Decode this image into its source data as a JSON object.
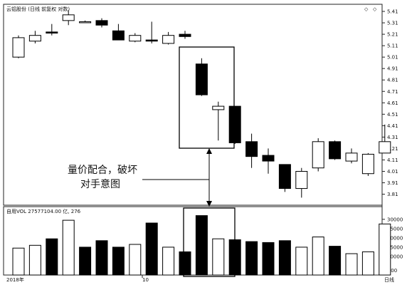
{
  "header": {
    "title": "云铝股份 (日线 前复权 对数)",
    "diamond_left": "◇",
    "diamond_right": "◇"
  },
  "volume_header": {
    "label": "自用VOL  27577104.00 亿, 276"
  },
  "annotation": {
    "line1": "量价配合，破坏",
    "line2": "对手意图"
  },
  "bottom": {
    "year_label": "2018年",
    "month_label": "10",
    "right_label": "日线",
    "unit_label": "X100"
  },
  "chart_data": [
    {
      "type": "candlestick",
      "title": "云铝股份 (日线 前复权 对数)",
      "ylim": [
        3.72,
        5.46
      ],
      "yticks": [
        5.41,
        5.31,
        5.21,
        5.11,
        5.01,
        4.91,
        4.81,
        4.71,
        4.61,
        4.51,
        4.41,
        4.31,
        4.21,
        4.11,
        4.01,
        3.91,
        3.81
      ],
      "candles": [
        {
          "open": 5.01,
          "high": 5.2,
          "low": 5.0,
          "close": 5.18
        },
        {
          "open": 5.15,
          "high": 5.24,
          "low": 5.13,
          "close": 5.2
        },
        {
          "open": 5.23,
          "high": 5.3,
          "low": 5.2,
          "close": 5.22
        },
        {
          "open": 5.33,
          "high": 5.42,
          "low": 5.29,
          "close": 5.38
        },
        {
          "open": 5.32,
          "high": 5.33,
          "low": 5.31,
          "close": 5.32
        },
        {
          "open": 5.33,
          "high": 5.35,
          "low": 5.27,
          "close": 5.29
        },
        {
          "open": 5.24,
          "high": 5.3,
          "low": 5.17,
          "close": 5.16
        },
        {
          "open": 5.15,
          "high": 5.22,
          "low": 5.14,
          "close": 5.2
        },
        {
          "open": 5.16,
          "high": 5.32,
          "low": 5.13,
          "close": 5.15
        },
        {
          "open": 5.13,
          "high": 5.23,
          "low": 5.12,
          "close": 5.2
        },
        {
          "open": 5.21,
          "high": 5.24,
          "low": 5.17,
          "close": 5.19
        },
        {
          "open": 4.95,
          "high": 5.0,
          "low": 4.67,
          "close": 4.68
        },
        {
          "open": 4.55,
          "high": 4.62,
          "low": 4.28,
          "close": 4.58
        },
        {
          "open": 4.58,
          "high": 4.58,
          "low": 4.25,
          "close": 4.26
        },
        {
          "open": 4.27,
          "high": 4.34,
          "low": 4.04,
          "close": 4.14
        },
        {
          "open": 4.15,
          "high": 4.21,
          "low": 3.99,
          "close": 4.1
        },
        {
          "open": 4.07,
          "high": 4.07,
          "low": 3.83,
          "close": 3.86
        },
        {
          "open": 3.86,
          "high": 4.04,
          "low": 3.78,
          "close": 4.01
        },
        {
          "open": 4.04,
          "high": 4.3,
          "low": 4.01,
          "close": 4.27
        },
        {
          "open": 4.27,
          "high": 4.28,
          "low": 4.11,
          "close": 4.12
        },
        {
          "open": 4.1,
          "high": 4.21,
          "low": 4.08,
          "close": 4.17
        },
        {
          "open": 3.99,
          "high": 4.17,
          "low": 3.97,
          "close": 4.16
        },
        {
          "open": 4.17,
          "high": 4.42,
          "low": 4.17,
          "close": 4.27
        }
      ]
    },
    {
      "type": "bar",
      "title": "自用VOL",
      "ylim": [
        0,
        33000
      ],
      "yticks": [
        10000,
        15000,
        20000,
        25000,
        30000
      ],
      "series": [
        {
          "values": [
            14500,
            16000,
            19500,
            29500,
            15000,
            18500,
            15000,
            16500,
            28000,
            15000,
            12500,
            32000,
            19500,
            19000,
            18000,
            17500,
            18500,
            15000,
            20500,
            15500,
            11500,
            12500,
            27500
          ],
          "up": [
            true,
            true,
            false,
            true,
            false,
            false,
            false,
            true,
            false,
            true,
            false,
            false,
            true,
            false,
            false,
            false,
            false,
            true,
            true,
            false,
            true,
            true,
            true
          ]
        }
      ]
    }
  ]
}
